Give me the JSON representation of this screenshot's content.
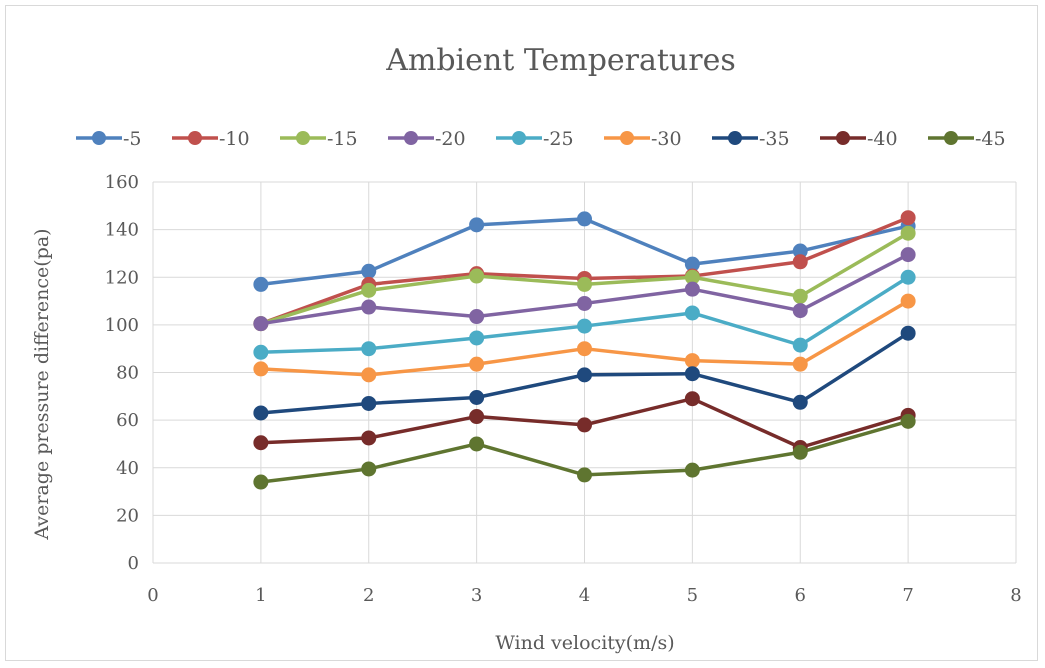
{
  "chart_data": {
    "type": "line",
    "title": "Ambient Temperatures",
    "xlabel": "Wind velocity(m/s)",
    "ylabel": "Average pressure difference(pa)",
    "xlim": [
      0,
      8
    ],
    "ylim": [
      0,
      160
    ],
    "xticks": [
      0,
      1,
      2,
      3,
      4,
      5,
      6,
      7,
      8
    ],
    "yticks": [
      0,
      20,
      40,
      60,
      80,
      100,
      120,
      140,
      160
    ],
    "x": [
      1,
      2,
      3,
      4,
      5,
      6,
      7
    ],
    "grid": "major-both",
    "legend_position": "top",
    "series": [
      {
        "name": "-5",
        "color": "#4f81bd",
        "values": [
          117,
          122.5,
          142,
          144.5,
          125.5,
          131,
          141.5
        ]
      },
      {
        "name": "-10",
        "color": "#c0504d",
        "values": [
          100.5,
          117,
          121.5,
          119.5,
          120.5,
          126.5,
          145
        ]
      },
      {
        "name": "-15",
        "color": "#9bbb59",
        "values": [
          100.5,
          114.5,
          120.5,
          117,
          120,
          112,
          138.5
        ]
      },
      {
        "name": "-20",
        "color": "#8064a2",
        "values": [
          100.5,
          107.5,
          103.5,
          109,
          115,
          106,
          129.5
        ]
      },
      {
        "name": "-25",
        "color": "#4bacc6",
        "values": [
          88.5,
          90,
          94.5,
          99.5,
          105,
          91.5,
          120
        ]
      },
      {
        "name": "-30",
        "color": "#f79646",
        "values": [
          81.5,
          79,
          83.5,
          90,
          85,
          83.5,
          110
        ]
      },
      {
        "name": "-35",
        "color": "#1f497d",
        "values": [
          63,
          67,
          69.5,
          79,
          79.5,
          67.5,
          96.5
        ]
      },
      {
        "name": "-40",
        "color": "#772c2a",
        "values": [
          50.5,
          52.5,
          61.5,
          58,
          69,
          48.5,
          62
        ]
      },
      {
        "name": "-45",
        "color": "#5f7530",
        "values": [
          34,
          39.5,
          50,
          37,
          39,
          46.5,
          59.5
        ]
      }
    ]
  }
}
